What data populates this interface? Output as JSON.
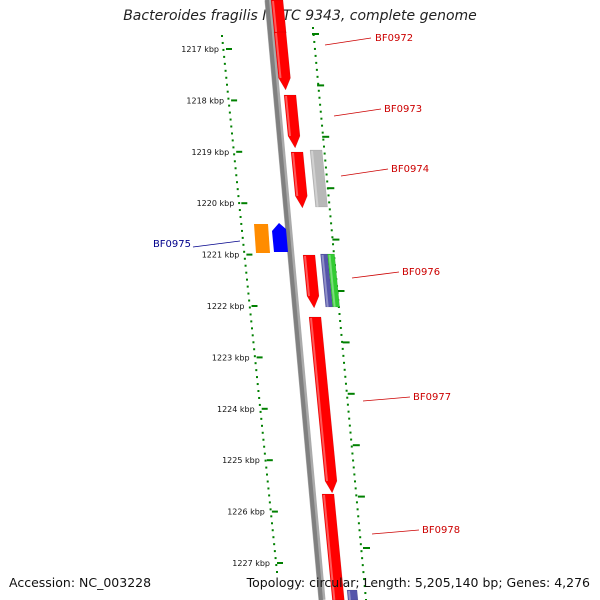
{
  "title": "Bacteroides fragilis NCTC 9343, complete genome",
  "footer": {
    "accession": "Accession: NC_003228",
    "summary": "Topology: circular; Length: 5,205,140 bp; Genes: 4,276"
  },
  "colors": {
    "gene_forward": "#ff0000",
    "gene_gray": "#b8b8b8",
    "gene_reverse_orange": "#ff8c00",
    "gene_reverse_blue": "#0000ff",
    "gene_slate": "#5555aa",
    "gene_green": "#33cc33",
    "backbone": "#808080",
    "ruler": "#008000",
    "label_forward": "#cc0000",
    "label_reverse": "#00008b"
  },
  "ruler": {
    "unit": "kbp",
    "ticks": [
      "1217 kbp",
      "1218 kbp",
      "1219 kbp",
      "1220 kbp",
      "1221 kbp",
      "1222 kbp",
      "1223 kbp",
      "1224 kbp",
      "1225 kbp",
      "1226 kbp",
      "1227 kbp"
    ]
  },
  "genes": {
    "forward": [
      {
        "label": "BF0972",
        "color": "#ff0000"
      },
      {
        "label": "BF0973",
        "color": "#ff0000"
      },
      {
        "label": "BF0974",
        "color": "#ff0000"
      },
      {
        "label": "BF0976",
        "color": "#ff0000"
      },
      {
        "label": "BF0977",
        "color": "#ff0000"
      },
      {
        "label": "BF0978",
        "color": "#ff0000"
      }
    ],
    "reverse": [
      {
        "label": "BF0975",
        "color": "#0000ff"
      }
    ]
  }
}
